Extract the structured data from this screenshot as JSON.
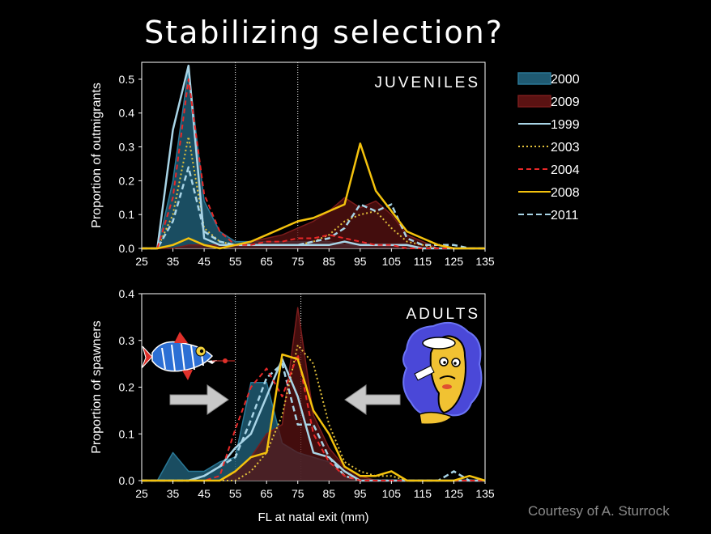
{
  "slide": {
    "title": "Stabilizing selection?",
    "credit": "Courtesy of A. Sturrock"
  },
  "colors": {
    "background": "#000000",
    "s2000_fill": "#1f5a72",
    "s2000_line": "#2a7896",
    "s2009_fill": "#5a1212",
    "s2009_line": "#7a1c1c",
    "s1999": "#a8d4e6",
    "s2003": "#e3c13b",
    "s2004": "#e82828",
    "s2008": "#f4c20d",
    "s2011": "#a8d4e6"
  },
  "legend": [
    {
      "label": "2000",
      "style": "area",
      "color": "#2a7896"
    },
    {
      "label": "2009",
      "style": "area",
      "color": "#7a1c1c"
    },
    {
      "label": "1999",
      "style": "solid",
      "color": "#a8d4e6"
    },
    {
      "label": "2003",
      "style": "dotted",
      "color": "#e3c13b"
    },
    {
      "label": "2004",
      "style": "dashed",
      "color": "#e82828"
    },
    {
      "label": "2008",
      "style": "solid",
      "color": "#f4c20d"
    },
    {
      "label": "2011",
      "style": "dashed",
      "color": "#a8d4e6"
    }
  ],
  "chart_data": [
    {
      "type": "area",
      "panel_label": "JUVENILES",
      "title": "",
      "xlabel": "",
      "ylabel": "Proportion of outmigrants",
      "xlim": [
        25,
        135
      ],
      "ylim": [
        0,
        0.55
      ],
      "xticks": [
        25,
        35,
        45,
        55,
        65,
        75,
        85,
        95,
        105,
        115,
        125,
        135
      ],
      "yticks": [
        0,
        0.1,
        0.2,
        0.3,
        0.4,
        0.5
      ],
      "ytick_labels": [
        "0.0",
        "0.1",
        "0.2",
        "0.3",
        "0.4",
        "0.5"
      ],
      "vlines": [
        55,
        75
      ],
      "x": [
        25,
        30,
        35,
        40,
        45,
        50,
        55,
        60,
        65,
        70,
        75,
        80,
        85,
        90,
        95,
        100,
        105,
        110,
        115,
        120,
        125,
        130,
        135
      ],
      "series": [
        {
          "name": "2000",
          "style": "area",
          "values": [
            0,
            0,
            0.2,
            0.53,
            0.14,
            0.05,
            0.02,
            0.02,
            0.02,
            0.02,
            0.02,
            0.02,
            0.02,
            0.01,
            0.01,
            0.01,
            0.01,
            0.01,
            0,
            0,
            0,
            0,
            0
          ]
        },
        {
          "name": "2009",
          "style": "area",
          "values": [
            0,
            0,
            0,
            0.01,
            0.01,
            0.01,
            0.01,
            0.02,
            0.03,
            0.04,
            0.06,
            0.08,
            0.11,
            0.15,
            0.12,
            0.14,
            0.1,
            0.04,
            0.02,
            0,
            0,
            0,
            0
          ]
        },
        {
          "name": "1999",
          "style": "solid",
          "values": [
            0,
            0,
            0.35,
            0.54,
            0.03,
            0.01,
            0.01,
            0.01,
            0.01,
            0.01,
            0.01,
            0.01,
            0.01,
            0.02,
            0.01,
            0.01,
            0.01,
            0.01,
            0,
            0,
            0,
            0,
            0
          ]
        },
        {
          "name": "2003",
          "style": "dotted",
          "values": [
            0,
            0,
            0.1,
            0.33,
            0.06,
            0.02,
            0.01,
            0.01,
            0.01,
            0.01,
            0.01,
            0.02,
            0.04,
            0.08,
            0.1,
            0.11,
            0.06,
            0.02,
            0.01,
            0,
            0,
            0,
            0
          ]
        },
        {
          "name": "2004",
          "style": "dashed",
          "values": [
            0,
            0,
            0.15,
            0.5,
            0.16,
            0.05,
            0.01,
            0.01,
            0.02,
            0.02,
            0.03,
            0.03,
            0.04,
            0.03,
            0.02,
            0.01,
            0.01,
            0,
            0,
            0,
            0,
            0,
            0
          ]
        },
        {
          "name": "2008",
          "style": "solid",
          "values": [
            0,
            0,
            0.01,
            0.03,
            0.01,
            0,
            0.01,
            0.02,
            0.04,
            0.06,
            0.08,
            0.09,
            0.11,
            0.13,
            0.31,
            0.17,
            0.11,
            0.05,
            0.03,
            0.01,
            0,
            0,
            0
          ]
        },
        {
          "name": "2011",
          "style": "dashed",
          "values": [
            0,
            0,
            0.08,
            0.24,
            0.05,
            0.02,
            0.01,
            0.01,
            0.01,
            0.01,
            0.01,
            0.02,
            0.03,
            0.06,
            0.13,
            0.11,
            0.13,
            0.03,
            0.01,
            0.01,
            0.01,
            0,
            0
          ]
        }
      ]
    },
    {
      "type": "area",
      "panel_label": "ADULTS",
      "title": "",
      "xlabel": "FL at natal exit (mm)",
      "ylabel": "Proportion of spawners",
      "xlim": [
        25,
        135
      ],
      "ylim": [
        0,
        0.4
      ],
      "xticks": [
        25,
        35,
        45,
        55,
        65,
        75,
        85,
        95,
        105,
        115,
        125,
        135
      ],
      "yticks": [
        0,
        0.1,
        0.2,
        0.3,
        0.4
      ],
      "ytick_labels": [
        "0.0",
        "0.1",
        "0.2",
        "0.3",
        "0.4"
      ],
      "vlines": [
        55,
        76
      ],
      "x": [
        25,
        30,
        35,
        40,
        45,
        50,
        55,
        60,
        65,
        70,
        75,
        80,
        85,
        90,
        95,
        100,
        105,
        110,
        115,
        120,
        125,
        130,
        135
      ],
      "series": [
        {
          "name": "2000",
          "style": "area",
          "values": [
            0,
            0,
            0.06,
            0.02,
            0.02,
            0.04,
            0.05,
            0.21,
            0.21,
            0.08,
            0.06,
            0.05,
            0.04,
            0.01,
            0,
            0,
            0,
            0,
            0,
            0,
            0,
            0,
            0
          ]
        },
        {
          "name": "2009",
          "style": "area",
          "values": [
            0,
            0,
            0,
            0,
            0,
            0,
            0.02,
            0.05,
            0.1,
            0.12,
            0.37,
            0.14,
            0.07,
            0.03,
            0.01,
            0,
            0,
            0,
            0,
            0,
            0,
            0,
            0
          ]
        },
        {
          "name": "1999",
          "style": "solid",
          "values": [
            0,
            0,
            0,
            0,
            0.01,
            0.03,
            0.07,
            0.1,
            0.18,
            0.26,
            0.18,
            0.06,
            0.05,
            0.02,
            0,
            0,
            0,
            0,
            0,
            0,
            0,
            0,
            0
          ]
        },
        {
          "name": "2003",
          "style": "dotted",
          "values": [
            0,
            0,
            0,
            0,
            0,
            0,
            0,
            0.02,
            0.06,
            0.14,
            0.29,
            0.25,
            0.12,
            0.04,
            0.02,
            0.01,
            0.01,
            0,
            0,
            0,
            0,
            0,
            0
          ]
        },
        {
          "name": "2004",
          "style": "dashed",
          "values": [
            0,
            0,
            0,
            0,
            0,
            0.01,
            0.11,
            0.2,
            0.24,
            0.18,
            0.27,
            0.1,
            0.04,
            0.01,
            0,
            0,
            0,
            0,
            0,
            0,
            0,
            0,
            0
          ]
        },
        {
          "name": "2008",
          "style": "solid",
          "values": [
            0,
            0,
            0,
            0,
            0,
            0,
            0.02,
            0.05,
            0.06,
            0.27,
            0.26,
            0.15,
            0.1,
            0.03,
            0.01,
            0.01,
            0.02,
            0,
            0,
            0,
            0,
            0.01,
            0
          ]
        },
        {
          "name": "2011",
          "style": "dashed",
          "values": [
            0,
            0,
            0,
            0,
            0.01,
            0.03,
            0.05,
            0.13,
            0.22,
            0.25,
            0.12,
            0.12,
            0.05,
            0.01,
            0,
            0,
            0,
            0,
            0,
            0,
            0.02,
            0,
            0
          ]
        }
      ]
    }
  ]
}
